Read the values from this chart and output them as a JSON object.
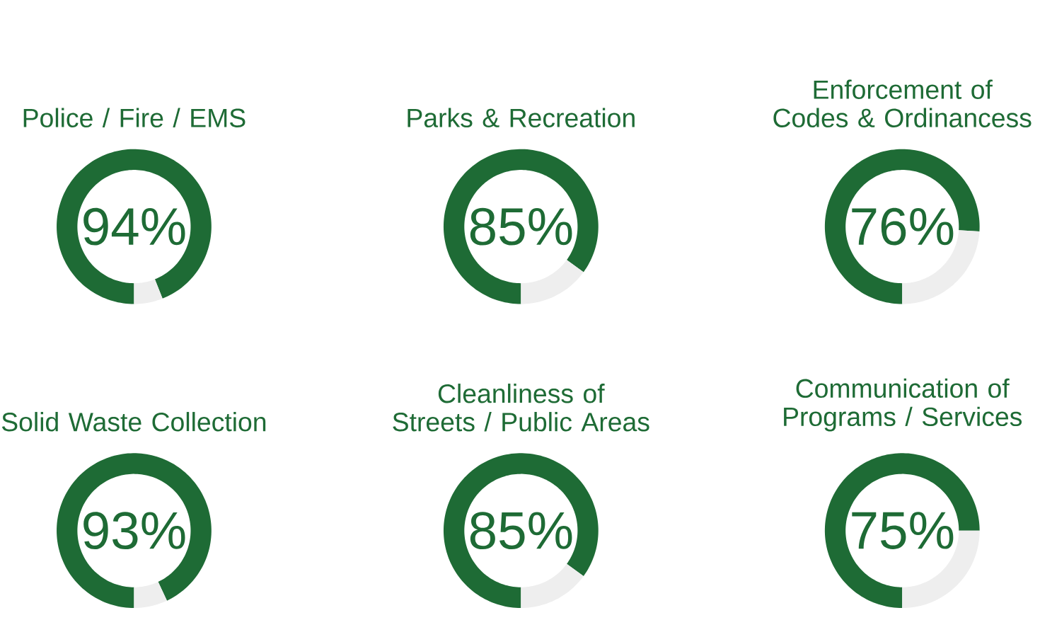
{
  "chart_data": [
    {
      "type": "donut",
      "title": "Police / Fire / EMS",
      "categories": [
        null,
        null
      ],
      "values": [
        94,
        6
      ],
      "colors": [
        "#1e6b35",
        "#eeeeee"
      ],
      "value_labels": [
        "94%",
        null
      ]
    },
    {
      "type": "donut",
      "title": "Parks & Recreation",
      "categories": [
        null,
        null
      ],
      "values": [
        85,
        15
      ],
      "colors": [
        "#1e6b35",
        "#eeeeee"
      ],
      "value_labels": [
        "85%",
        null
      ]
    },
    {
      "type": "donut",
      "title": "Enforcement of Codes & Ordinancess",
      "categories": [
        null,
        null
      ],
      "values": [
        76,
        24
      ],
      "colors": [
        "#1e6b35",
        "#eeeeee"
      ],
      "value_labels": [
        "76%",
        null
      ]
    },
    {
      "type": "donut",
      "title": "Solid Waste Collection",
      "categories": [
        null,
        null
      ],
      "values": [
        93,
        7
      ],
      "colors": [
        "#1e6b35",
        "#eeeeee"
      ],
      "value_labels": [
        "93%",
        null
      ]
    },
    {
      "type": "donut",
      "title": "Cleanliness of Streets / Public Areas",
      "categories": [
        null,
        null
      ],
      "values": [
        85,
        15
      ],
      "colors": [
        "#1e6b35",
        "#eeeeee"
      ],
      "value_labels": [
        "85%",
        null
      ]
    },
    {
      "type": "donut",
      "title": "Communication of Programs / Services",
      "categories": [
        null,
        null
      ],
      "values": [
        75,
        25
      ],
      "colors": [
        "#1e6b35",
        "#eeeeee"
      ],
      "value_labels": [
        "75%",
        null
      ]
    }
  ]
}
